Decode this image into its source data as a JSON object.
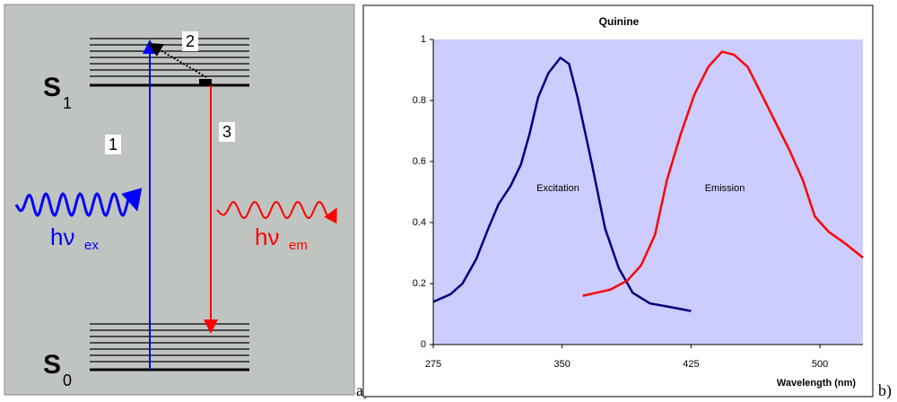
{
  "diagram": {
    "s1": "S",
    "s1_sub": "1",
    "s0": "S",
    "s0_sub": "0",
    "step1": "1",
    "step2": "2",
    "step3": "3",
    "hv_ex": "hν",
    "hv_ex_sub": "ex",
    "hv_em": "hν",
    "hv_em_sub": "em",
    "label_a": "a)",
    "label_b": "b)"
  },
  "chart_data": {
    "type": "line",
    "title": "Quinine",
    "x_label": "Wavelength (nm)",
    "xlim": [
      275,
      525
    ],
    "xticks": [
      275,
      350,
      425,
      500
    ],
    "ylim": [
      0,
      1
    ],
    "yticks": [
      0,
      0.2,
      0.4,
      0.6,
      0.8,
      1
    ],
    "background": "#ccccff",
    "series": [
      {
        "name": "Excitation",
        "color": "#000080",
        "x": [
          275,
          285,
          292,
          300,
          307,
          313,
          320,
          326,
          331,
          336,
          342,
          349,
          354,
          359,
          367,
          375,
          383,
          391,
          401,
          411,
          425
        ],
        "values": [
          0.14,
          0.165,
          0.2,
          0.28,
          0.38,
          0.46,
          0.52,
          0.59,
          0.69,
          0.81,
          0.89,
          0.94,
          0.92,
          0.81,
          0.6,
          0.38,
          0.25,
          0.17,
          0.135,
          0.125,
          0.11
        ]
      },
      {
        "name": "Emission",
        "color": "#ff0000",
        "x": [
          362,
          378,
          388,
          396,
          404,
          411,
          419,
          427,
          435,
          443,
          450,
          458,
          466,
          474,
          482,
          490,
          497,
          505,
          515,
          525
        ],
        "values": [
          0.16,
          0.18,
          0.21,
          0.26,
          0.36,
          0.54,
          0.69,
          0.82,
          0.91,
          0.96,
          0.95,
          0.91,
          0.82,
          0.73,
          0.64,
          0.54,
          0.42,
          0.37,
          0.33,
          0.285
        ]
      }
    ]
  }
}
